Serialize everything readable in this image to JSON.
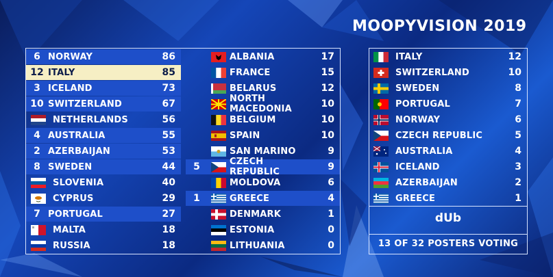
{
  "title": "MOOPYVISION 2019",
  "scoreboard_left": [
    {
      "pts": "6",
      "country": "NORWAY",
      "total": "86",
      "flag": "norway",
      "highlight": true
    },
    {
      "pts": "12",
      "country": "ITALY",
      "total": "85",
      "flag": "italy",
      "top": true
    },
    {
      "pts": "3",
      "country": "ICELAND",
      "total": "73",
      "flag": "iceland",
      "highlight": true
    },
    {
      "pts": "10",
      "country": "SWITZERLAND",
      "total": "67",
      "flag": "switzerland",
      "highlight": true
    },
    {
      "pts": "",
      "country": "NETHERLANDS",
      "total": "56",
      "flag": "netherlands"
    },
    {
      "pts": "4",
      "country": "AUSTRALIA",
      "total": "55",
      "flag": "australia",
      "highlight": true
    },
    {
      "pts": "2",
      "country": "AZERBAIJAN",
      "total": "53",
      "flag": "azerbaijan",
      "highlight": true
    },
    {
      "pts": "8",
      "country": "SWEDEN",
      "total": "44",
      "flag": "sweden",
      "highlight": true
    },
    {
      "pts": "",
      "country": "SLOVENIA",
      "total": "40",
      "flag": "slovenia"
    },
    {
      "pts": "",
      "country": "CYPRUS",
      "total": "29",
      "flag": "cyprus"
    },
    {
      "pts": "7",
      "country": "PORTUGAL",
      "total": "27",
      "flag": "portugal",
      "highlight": true
    },
    {
      "pts": "",
      "country": "MALTA",
      "total": "18",
      "flag": "malta"
    },
    {
      "pts": "",
      "country": "RUSSIA",
      "total": "18",
      "flag": "russia"
    }
  ],
  "scoreboard_right": [
    {
      "pts": "",
      "country": "ALBANIA",
      "total": "17",
      "flag": "albania"
    },
    {
      "pts": "",
      "country": "FRANCE",
      "total": "15",
      "flag": "france"
    },
    {
      "pts": "",
      "country": "BELARUS",
      "total": "12",
      "flag": "belarus"
    },
    {
      "pts": "",
      "country": "NORTH MACEDONIA",
      "total": "10",
      "flag": "macedonia"
    },
    {
      "pts": "",
      "country": "BELGIUM",
      "total": "10",
      "flag": "belgium"
    },
    {
      "pts": "",
      "country": "SPAIN",
      "total": "10",
      "flag": "spain"
    },
    {
      "pts": "",
      "country": "SAN MARINO",
      "total": "9",
      "flag": "sanmarino"
    },
    {
      "pts": "5",
      "country": "CZECH REPUBLIC",
      "total": "9",
      "flag": "czech",
      "highlight": true
    },
    {
      "pts": "",
      "country": "MOLDOVA",
      "total": "6",
      "flag": "moldova"
    },
    {
      "pts": "1",
      "country": "GREECE",
      "total": "4",
      "flag": "greece",
      "highlight": true
    },
    {
      "pts": "",
      "country": "DENMARK",
      "total": "1",
      "flag": "denmark"
    },
    {
      "pts": "",
      "country": "ESTONIA",
      "total": "0",
      "flag": "estonia"
    },
    {
      "pts": "",
      "country": "LITHUANIA",
      "total": "0",
      "flag": "lithuania"
    }
  ],
  "votes_panel": {
    "entries": [
      {
        "country": "ITALY",
        "points": "12",
        "flag": "italy"
      },
      {
        "country": "SWITZERLAND",
        "points": "10",
        "flag": "switzerland"
      },
      {
        "country": "SWEDEN",
        "points": "8",
        "flag": "sweden"
      },
      {
        "country": "PORTUGAL",
        "points": "7",
        "flag": "portugal"
      },
      {
        "country": "NORWAY",
        "points": "6",
        "flag": "norway"
      },
      {
        "country": "CZECH REPUBLIC",
        "points": "5",
        "flag": "czech"
      },
      {
        "country": "AUSTRALIA",
        "points": "4",
        "flag": "australia"
      },
      {
        "country": "ICELAND",
        "points": "3",
        "flag": "iceland"
      },
      {
        "country": "AZERBAIJAN",
        "points": "2",
        "flag": "azerbaijan"
      },
      {
        "country": "GREECE",
        "points": "1",
        "flag": "greece"
      }
    ],
    "voter": "dUb",
    "voting_status": "13 OF 32 POSTERS VOTING"
  }
}
